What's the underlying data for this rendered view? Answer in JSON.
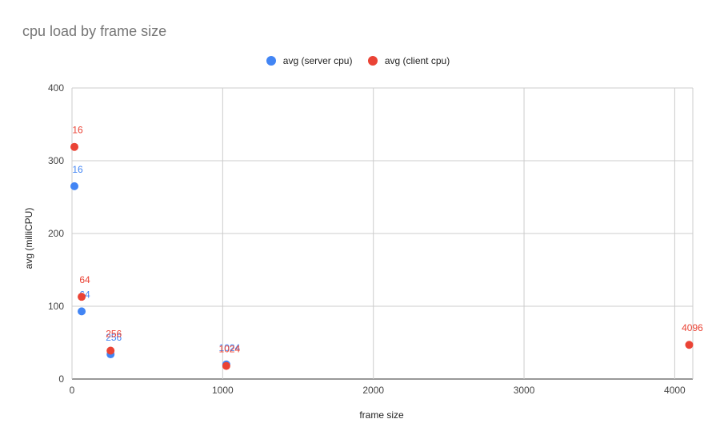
{
  "chart_data": {
    "type": "scatter",
    "title": "cpu load by frame size",
    "xlabel": "frame size",
    "ylabel": "avg (milliCPU)",
    "xlim": [
      0,
      4120
    ],
    "ylim": [
      0,
      400
    ],
    "xticks": [
      0,
      1000,
      2000,
      3000,
      4000
    ],
    "yticks": [
      0,
      100,
      200,
      300,
      400
    ],
    "grid": true,
    "legend_position": "top",
    "series": [
      {
        "name": "avg (server cpu)",
        "color": "#4285F4",
        "points": [
          {
            "x": 16,
            "y": 265,
            "label": "16"
          },
          {
            "x": 64,
            "y": 93,
            "label": "64"
          },
          {
            "x": 256,
            "y": 34,
            "label": "256"
          },
          {
            "x": 1024,
            "y": 20,
            "label": "1024"
          }
        ]
      },
      {
        "name": "avg (client cpu)",
        "color": "#EA4335",
        "points": [
          {
            "x": 16,
            "y": 319,
            "label": "16"
          },
          {
            "x": 64,
            "y": 113,
            "label": "64"
          },
          {
            "x": 256,
            "y": 39,
            "label": "256"
          },
          {
            "x": 1024,
            "y": 18,
            "label": "1024"
          },
          {
            "x": 4096,
            "y": 47,
            "label": "4096"
          }
        ]
      }
    ]
  }
}
